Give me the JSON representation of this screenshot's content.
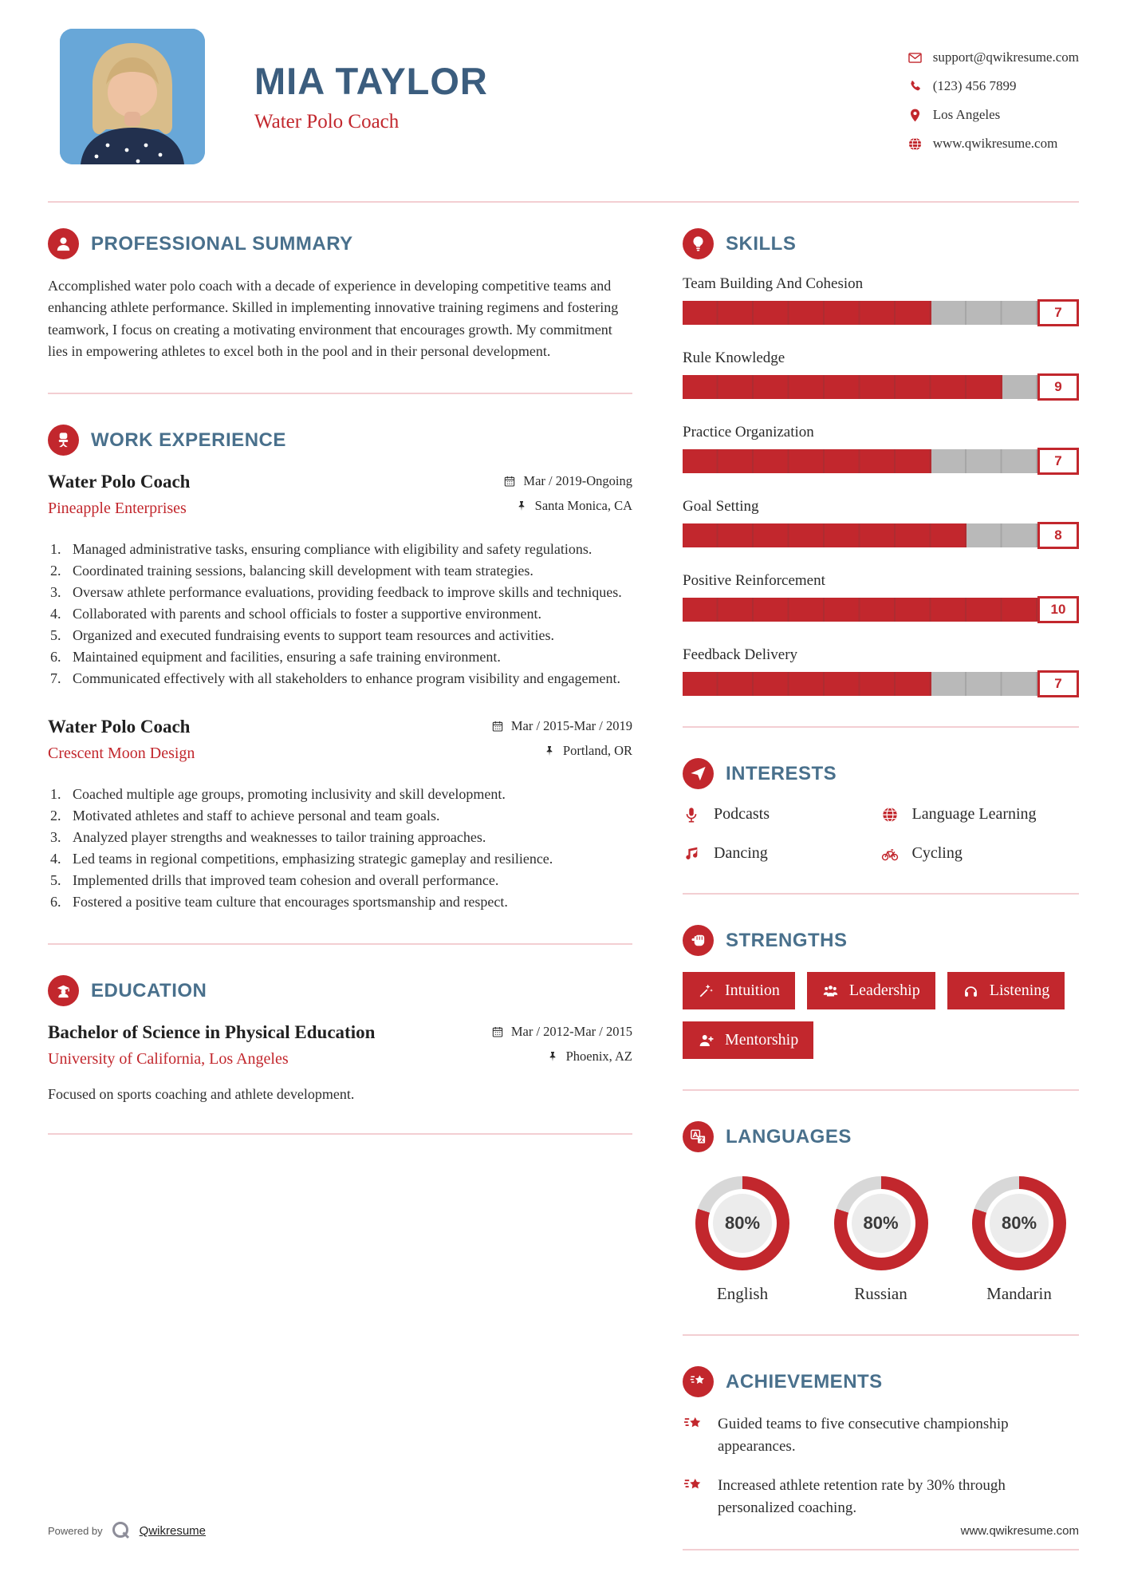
{
  "colors": {
    "accent": "#c2272d",
    "heading": "#49708c",
    "name": "#3b5d7e",
    "divider": "#f3ced2",
    "bar_gray": "#b9b9b9",
    "donut_gray": "#d8d8d8"
  },
  "header": {
    "name": "MIA TAYLOR",
    "title": "Water Polo Coach",
    "contact": [
      {
        "icon": "email-icon",
        "text": "support@qwikresume.com"
      },
      {
        "icon": "phone-icon",
        "text": "(123) 456 7899"
      },
      {
        "icon": "location-pin-icon",
        "text": "Los Angeles"
      },
      {
        "icon": "globe-icon",
        "text": "www.qwikresume.com"
      }
    ]
  },
  "summary": {
    "icon": "person-icon",
    "heading": "PROFESSIONAL SUMMARY",
    "text": "Accomplished water polo coach with a decade of experience in developing competitive teams and enhancing athlete performance. Skilled in implementing innovative training regimens and fostering teamwork, I focus on creating a motivating environment that encourages growth. My commitment lies in empowering athletes to excel both in the pool and in their personal development."
  },
  "work": {
    "icon": "office-chair-icon",
    "heading": "WORK EXPERIENCE",
    "meta_icons": {
      "date": "calendar-icon",
      "location": "pushpin-icon"
    },
    "jobs": [
      {
        "title": "Water Polo Coach",
        "company": "Pineapple Enterprises",
        "date": "Mar / 2019-Ongoing",
        "location": "Santa Monica, CA",
        "bullets": [
          "Managed administrative tasks, ensuring compliance with eligibility and safety regulations.",
          "Coordinated training sessions, balancing skill development with team strategies.",
          "Oversaw athlete performance evaluations, providing feedback to improve skills and techniques.",
          "Collaborated with parents and school officials to foster a supportive environment.",
          "Organized and executed fundraising events to support team resources and activities.",
          "Maintained equipment and facilities, ensuring a safe training environment.",
          "Communicated effectively with all stakeholders to enhance program visibility and engagement."
        ]
      },
      {
        "title": "Water Polo Coach",
        "company": "Crescent Moon Design",
        "date": "Mar / 2015-Mar / 2019",
        "location": "Portland, OR",
        "bullets": [
          "Coached multiple age groups, promoting inclusivity and skill development.",
          "Motivated athletes and staff to achieve personal and team goals.",
          "Analyzed player strengths and weaknesses to tailor training approaches.",
          "Led teams in regional competitions, emphasizing strategic gameplay and resilience.",
          "Implemented drills that improved team cohesion and overall performance.",
          "Fostered a positive team culture that encourages sportsmanship and respect."
        ]
      }
    ]
  },
  "education": {
    "icon": "graduate-icon",
    "heading": "EDUCATION",
    "degree": "Bachelor of Science in Physical Education",
    "school": "University of California, Los Angeles",
    "date": "Mar / 2012-Mar / 2015",
    "location": "Phoenix, AZ",
    "description": "Focused on sports coaching and athlete development."
  },
  "skills": {
    "icon": "lightbulb-icon",
    "heading": "SKILLS",
    "max": 10,
    "items": [
      {
        "name": "Team Building And Cohesion",
        "score": 7
      },
      {
        "name": "Rule Knowledge",
        "score": 9
      },
      {
        "name": "Practice Organization",
        "score": 7
      },
      {
        "name": "Goal Setting",
        "score": 8
      },
      {
        "name": "Positive Reinforcement",
        "score": 10
      },
      {
        "name": "Feedback Delivery",
        "score": 7
      }
    ]
  },
  "interests": {
    "icon": "paper-plane-icon",
    "heading": "INTERESTS",
    "items": [
      {
        "icon": "microphone-icon",
        "label": "Podcasts"
      },
      {
        "icon": "globe-icon",
        "label": "Language Learning"
      },
      {
        "icon": "music-note-icon",
        "label": "Dancing"
      },
      {
        "icon": "bicycle-icon",
        "label": "Cycling"
      }
    ]
  },
  "strengths": {
    "icon": "fist-icon",
    "heading": "STRENGTHS",
    "items": [
      {
        "icon": "magic-wand-icon",
        "label": "Intuition"
      },
      {
        "icon": "team-icon",
        "label": "Leadership"
      },
      {
        "icon": "headphones-icon",
        "label": "Listening"
      },
      {
        "icon": "person-plus-icon",
        "label": "Mentorship"
      }
    ]
  },
  "languages": {
    "icon": "translation-icon",
    "heading": "LANGUAGES",
    "items": [
      {
        "name": "English",
        "percent": 80,
        "label": "80%"
      },
      {
        "name": "Russian",
        "percent": 80,
        "label": "80%"
      },
      {
        "name": "Mandarin",
        "percent": 80,
        "label": "80%"
      }
    ]
  },
  "achievements": {
    "icon": "shooting-star-icon",
    "heading": "ACHIEVEMENTS",
    "item_icon": "shooting-star-icon",
    "items": [
      "Guided teams to five consecutive championship appearances.",
      "Increased athlete retention rate by 30% through personalized coaching."
    ]
  },
  "footer": {
    "powered_by": "Powered by",
    "logo_icon": "qwikresume-logo-icon",
    "brand": "Qwikresume",
    "website": "www.qwikresume.com"
  }
}
